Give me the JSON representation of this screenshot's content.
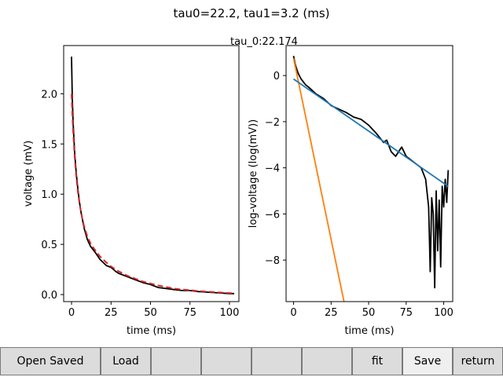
{
  "figure": {
    "suptitle": "tau0=22.2, tau1=3.2 (ms)"
  },
  "chart_data": [
    {
      "type": "line",
      "title": "",
      "xlabel": "time (ms)",
      "ylabel": "voltage (mV)",
      "xlim": [
        -5,
        106
      ],
      "ylim": [
        -0.07,
        2.48
      ],
      "xticks": [
        "0",
        "25",
        "50",
        "75",
        "100"
      ],
      "yticks": [
        "0.0",
        "0.5",
        "1.0",
        "1.5",
        "2.0"
      ],
      "grid": false,
      "series": [
        {
          "style": "solid",
          "color": "#000000",
          "x": [
            0,
            0.5,
            1,
            2,
            3,
            4,
            5,
            6,
            7,
            8,
            10,
            12,
            15,
            18,
            20,
            22,
            25,
            28,
            30,
            35,
            40,
            45,
            50,
            55,
            60,
            65,
            70,
            75,
            80,
            85,
            90,
            95,
            100,
            103
          ],
          "y": [
            2.37,
            1.95,
            1.7,
            1.4,
            1.2,
            1.05,
            0.92,
            0.82,
            0.74,
            0.66,
            0.55,
            0.48,
            0.42,
            0.35,
            0.32,
            0.29,
            0.27,
            0.23,
            0.21,
            0.18,
            0.15,
            0.12,
            0.1,
            0.07,
            0.06,
            0.05,
            0.04,
            0.04,
            0.03,
            0.025,
            0.02,
            0.015,
            0.01,
            0.01
          ]
        },
        {
          "style": "dashed",
          "color": "#d62728",
          "x": [
            0,
            0.5,
            1,
            2,
            3,
            4,
            5,
            6,
            7,
            8,
            10,
            12,
            15,
            18,
            20,
            22,
            25,
            28,
            30,
            35,
            40,
            45,
            50,
            55,
            60,
            65,
            70,
            75,
            80,
            85,
            90,
            95,
            100,
            103
          ],
          "y": [
            2.0,
            1.8,
            1.62,
            1.36,
            1.17,
            1.02,
            0.91,
            0.82,
            0.74,
            0.68,
            0.58,
            0.51,
            0.44,
            0.38,
            0.35,
            0.32,
            0.28,
            0.25,
            0.23,
            0.19,
            0.16,
            0.13,
            0.11,
            0.09,
            0.075,
            0.06,
            0.05,
            0.045,
            0.035,
            0.03,
            0.025,
            0.02,
            0.015,
            0.013
          ]
        }
      ]
    },
    {
      "type": "line",
      "title": "tau_0:22.174",
      "xlabel": "time (ms)",
      "ylabel": "log-voltage (log(mV))",
      "xlim": [
        -5,
        106
      ],
      "ylim": [
        -9.8,
        1.3
      ],
      "xticks": [
        "0",
        "25",
        "50",
        "75",
        "100"
      ],
      "yticks": [
        "0",
        "−2",
        "−4",
        "−6",
        "−8"
      ],
      "grid": false,
      "series": [
        {
          "style": "solid",
          "color": "#000000",
          "x": [
            0,
            1,
            2,
            3,
            5,
            8,
            10,
            15,
            20,
            25,
            30,
            35,
            40,
            45,
            50,
            55,
            60,
            62,
            65,
            68,
            70,
            72,
            75,
            80,
            85,
            88,
            90,
            91,
            92,
            93,
            94,
            95,
            96,
            97,
            98,
            99,
            100,
            101,
            102,
            103
          ],
          "y": [
            0.85,
            0.5,
            0.3,
            0.1,
            -0.15,
            -0.4,
            -0.5,
            -0.8,
            -1.0,
            -1.3,
            -1.45,
            -1.6,
            -1.8,
            -1.9,
            -2.15,
            -2.5,
            -2.9,
            -2.8,
            -3.3,
            -3.5,
            -3.3,
            -3.1,
            -3.5,
            -3.75,
            -4.0,
            -4.5,
            -5.7,
            -8.5,
            -5.3,
            -6.0,
            -9.2,
            -5.0,
            -7.6,
            -5.4,
            -8.3,
            -4.8,
            -5.7,
            -4.5,
            -5.5,
            -4.1
          ]
        },
        {
          "style": "solid",
          "color": "#ff7f0e",
          "x": [
            0,
            33.6
          ],
          "y": [
            0.75,
            -9.8
          ]
        },
        {
          "style": "solid",
          "color": "#1f77b4",
          "x": [
            0,
            103
          ],
          "y": [
            -0.15,
            -4.8
          ]
        }
      ]
    }
  ],
  "toolbar": {
    "buttons": [
      {
        "name": "open-saved-button",
        "label": "Open Saved",
        "light": false
      },
      {
        "name": "load-button",
        "label": "Load",
        "light": false
      },
      {
        "name": "empty-button-1",
        "label": "",
        "light": false
      },
      {
        "name": "empty-button-2",
        "label": "",
        "light": false
      },
      {
        "name": "empty-button-3",
        "label": "",
        "light": false
      },
      {
        "name": "empty-button-4",
        "label": "",
        "light": false
      },
      {
        "name": "fit-button",
        "label": "fit",
        "light": false
      },
      {
        "name": "save-button",
        "label": "Save",
        "light": true
      },
      {
        "name": "return-button",
        "label": "return",
        "light": false
      }
    ]
  }
}
